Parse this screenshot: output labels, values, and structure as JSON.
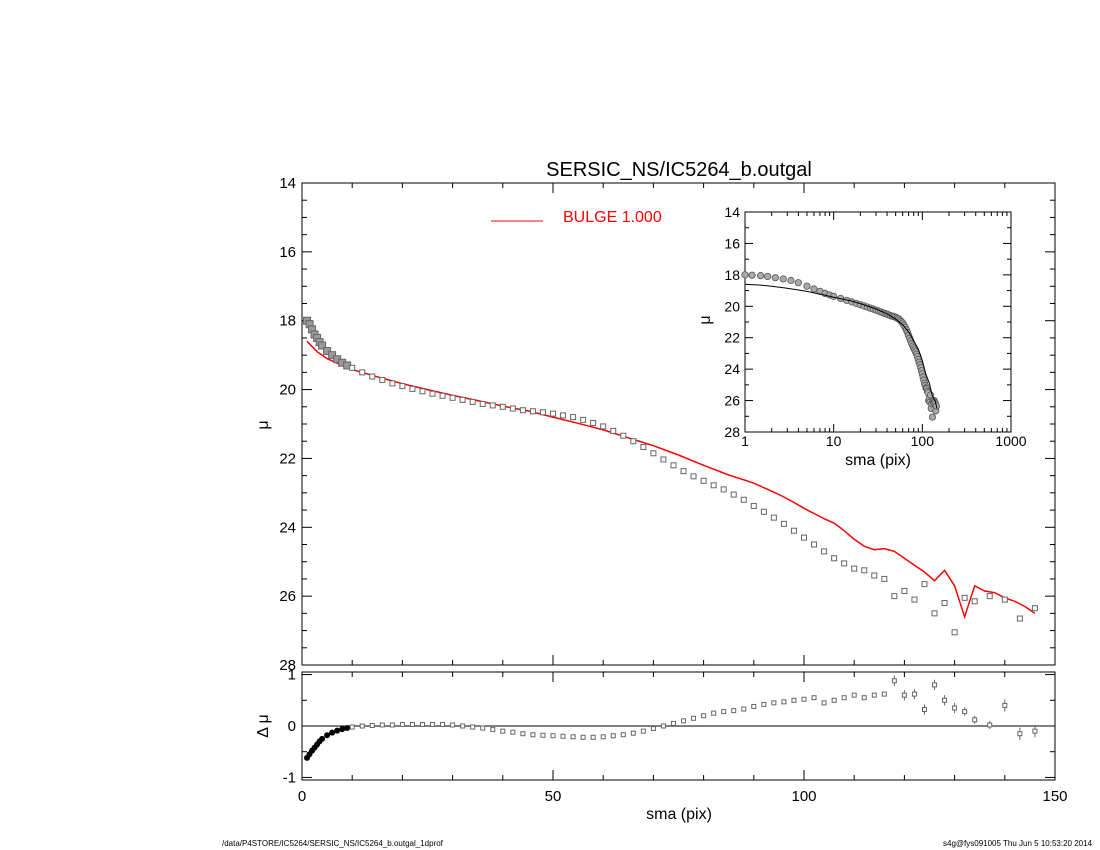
{
  "title": "SERSIC_NS/IC5264_b.outgal",
  "footer": {
    "left": "/data/P4STORE/IC5264/SERSIC_NS/IC5264_b.outgal_1dprof",
    "right": "s4g@fys091005  Thu Jun  5 10:53:20 2014"
  },
  "colors": {
    "model": "#ff0000",
    "points": "#666666",
    "axes": "#000000"
  },
  "chart_data": [
    {
      "name": "main-profile",
      "type": "scatter",
      "xlim": [
        0,
        150
      ],
      "ylim": [
        28,
        14
      ],
      "ylabel": "μ",
      "xticks": [
        0,
        50,
        100,
        150
      ],
      "xtick_labels": [
        "0",
        "50",
        "100",
        "150"
      ],
      "yticks": [
        14,
        16,
        18,
        20,
        22,
        24,
        26,
        28
      ],
      "ytick_labels": [
        "14",
        "16",
        "18",
        "20",
        "22",
        "24",
        "26",
        "28"
      ],
      "legend": {
        "label": "BULGE  1.000",
        "position": "top-center",
        "color": "#ff0000"
      },
      "series": [
        {
          "name": "data",
          "marker": "square",
          "x": [
            1.0,
            1.5,
            2.0,
            2.5,
            3.0,
            3.5,
            4.0,
            5.0,
            6.0,
            7.0,
            8.0,
            9.0,
            10.0,
            12.0,
            14.0,
            16.0,
            18.0,
            20.0,
            22.0,
            24.0,
            26.0,
            28.0,
            30.0,
            32.0,
            34.0,
            36.0,
            38.0,
            40.0,
            42.0,
            44.0,
            46.0,
            48.0,
            50.0,
            52.0,
            54.0,
            56.0,
            58.0,
            60.0,
            62.0,
            64.0,
            66.0,
            68.0,
            70.0,
            72.0,
            74.0,
            76.0,
            78.0,
            80.0,
            82.0,
            84.0,
            86.0,
            88.0,
            90.0,
            92.0,
            94.0,
            96.0,
            98.0,
            100.0,
            102.0,
            104.0,
            106.0,
            108.0,
            110.0,
            112.0,
            114.0,
            116.0,
            118.0,
            120.0,
            122.0,
            124.0,
            126.0,
            128.0,
            130.0,
            132.0,
            134.0,
            137.0,
            140.0,
            143.0,
            146.0
          ],
          "y": [
            18.0,
            18.1,
            18.25,
            18.4,
            18.5,
            18.62,
            18.72,
            18.88,
            19.0,
            19.12,
            19.22,
            19.3,
            19.37,
            19.5,
            19.62,
            19.72,
            19.82,
            19.9,
            19.98,
            20.05,
            20.12,
            20.18,
            20.24,
            20.3,
            20.36,
            20.42,
            20.46,
            20.5,
            20.55,
            20.6,
            20.63,
            20.66,
            20.7,
            20.75,
            20.8,
            20.88,
            20.97,
            21.07,
            21.2,
            21.34,
            21.5,
            21.67,
            21.85,
            22.03,
            22.2,
            22.37,
            22.52,
            22.65,
            22.78,
            22.9,
            23.05,
            23.2,
            23.38,
            23.55,
            23.72,
            23.9,
            24.1,
            24.3,
            24.5,
            24.7,
            24.9,
            25.05,
            25.2,
            25.25,
            25.4,
            25.5,
            26.0,
            25.85,
            26.1,
            25.65,
            26.5,
            26.2,
            27.05,
            26.05,
            26.15,
            26.0,
            26.1,
            26.65,
            26.35
          ]
        },
        {
          "name": "BULGE  1.000",
          "style": "line",
          "x": [
            1,
            3,
            5,
            8,
            10,
            15,
            20,
            25,
            30,
            35,
            40,
            45,
            50,
            55,
            60,
            65,
            70,
            75,
            80,
            85,
            88,
            90,
            92,
            94,
            96,
            98,
            100,
            102,
            104,
            106,
            108,
            110,
            112,
            114,
            116,
            118,
            120,
            122,
            124,
            126,
            128,
            130,
            132,
            134,
            136,
            138,
            140,
            142,
            144,
            146
          ],
          "y": [
            18.6,
            18.9,
            19.1,
            19.3,
            19.42,
            19.63,
            19.83,
            20.0,
            20.17,
            20.32,
            20.48,
            20.62,
            20.8,
            20.98,
            21.17,
            21.4,
            21.63,
            21.9,
            22.2,
            22.48,
            22.62,
            22.72,
            22.85,
            22.98,
            23.12,
            23.28,
            23.45,
            23.6,
            23.75,
            23.88,
            24.1,
            24.35,
            24.55,
            24.65,
            24.62,
            24.7,
            24.9,
            25.1,
            25.3,
            25.55,
            25.25,
            25.7,
            26.6,
            25.7,
            25.85,
            25.9,
            26.05,
            26.15,
            26.3,
            26.5
          ]
        }
      ]
    },
    {
      "name": "residual",
      "type": "scatter",
      "xlim": [
        0,
        150
      ],
      "ylim": [
        -1.05,
        1.05
      ],
      "xlabel": "sma (pix)",
      "ylabel": "Δ μ",
      "xticks": [
        0,
        50,
        100,
        150
      ],
      "xtick_labels": [
        "0",
        "50",
        "100",
        "150"
      ],
      "yticks": [
        -1,
        0,
        1
      ],
      "ytick_labels": [
        "-1",
        "0",
        "1"
      ],
      "series": [
        {
          "name": "residual",
          "marker": "square",
          "x": [
            1.0,
            1.5,
            2.0,
            2.5,
            3.0,
            3.5,
            4.0,
            5.0,
            6.0,
            7.0,
            8.0,
            9.0,
            10.0,
            12.0,
            14.0,
            16.0,
            18.0,
            20.0,
            22.0,
            24.0,
            26.0,
            28.0,
            30.0,
            32.0,
            34.0,
            36.0,
            38.0,
            40.0,
            42.0,
            44.0,
            46.0,
            48.0,
            50.0,
            52.0,
            54.0,
            56.0,
            58.0,
            60.0,
            62.0,
            64.0,
            66.0,
            68.0,
            70.0,
            72.0,
            74.0,
            76.0,
            78.0,
            80.0,
            82.0,
            84.0,
            86.0,
            88.0,
            90.0,
            92.0,
            94.0,
            96.0,
            98.0,
            100.0,
            102.0,
            104.0,
            106.0,
            108.0,
            110.0,
            112.0,
            114.0,
            116.0,
            118.0,
            120.0,
            122.0,
            124.0,
            126.0,
            128.0,
            130.0,
            132.0,
            134.0,
            137.0,
            140.0,
            143.0,
            146.0
          ],
          "y": [
            -0.62,
            -0.55,
            -0.48,
            -0.42,
            -0.36,
            -0.3,
            -0.25,
            -0.18,
            -0.13,
            -0.09,
            -0.06,
            -0.04,
            -0.02,
            0.0,
            0.01,
            0.02,
            0.02,
            0.03,
            0.03,
            0.03,
            0.03,
            0.03,
            0.02,
            0.0,
            -0.02,
            -0.04,
            -0.07,
            -0.1,
            -0.12,
            -0.15,
            -0.17,
            -0.18,
            -0.19,
            -0.2,
            -0.21,
            -0.22,
            -0.22,
            -0.21,
            -0.19,
            -0.17,
            -0.14,
            -0.1,
            -0.05,
            0.0,
            0.05,
            0.1,
            0.15,
            0.2,
            0.25,
            0.28,
            0.3,
            0.33,
            0.38,
            0.42,
            0.45,
            0.47,
            0.5,
            0.52,
            0.55,
            0.45,
            0.5,
            0.55,
            0.6,
            0.55,
            0.6,
            0.62,
            0.88,
            0.6,
            0.62,
            0.32,
            0.8,
            0.5,
            0.35,
            0.28,
            0.12,
            0.02,
            0.4,
            -0.15,
            -0.1
          ],
          "errors": [
            0,
            0,
            0,
            0,
            0,
            0,
            0,
            0,
            0,
            0,
            0,
            0,
            0,
            0,
            0,
            0,
            0,
            0,
            0,
            0,
            0,
            0,
            0,
            0,
            0,
            0,
            0,
            0,
            0,
            0,
            0,
            0,
            0,
            0,
            0,
            0,
            0,
            0,
            0,
            0,
            0,
            0,
            0,
            0,
            0,
            0,
            0,
            0,
            0,
            0,
            0,
            0,
            0,
            0,
            0,
            0,
            0,
            0,
            0,
            0,
            0,
            0,
            0,
            0,
            0,
            0,
            0.1,
            0.1,
            0.1,
            0.1,
            0.1,
            0.1,
            0.1,
            0.08,
            0.08,
            0.08,
            0.12,
            0.12,
            0.12
          ]
        }
      ]
    },
    {
      "name": "inset-log",
      "type": "scatter",
      "xscale": "log",
      "xlim": [
        1,
        1000
      ],
      "ylim": [
        28,
        14
      ],
      "xlabel": "sma (pix)",
      "ylabel": "μ",
      "xticks": [
        1,
        10,
        100,
        1000
      ],
      "xtick_labels": [
        "1",
        "10",
        "100",
        "1000"
      ],
      "yticks": [
        14,
        16,
        18,
        20,
        22,
        24,
        26,
        28
      ],
      "ytick_labels": [
        "14",
        "16",
        "18",
        "20",
        "22",
        "24",
        "26",
        "28"
      ],
      "series": [
        {
          "name": "data",
          "marker": "circle",
          "x": [
            1.0,
            1.2,
            1.5,
            1.8,
            2.2,
            2.7,
            3.3,
            4,
            5,
            6,
            7,
            8,
            9,
            10,
            12,
            14,
            16,
            18,
            20,
            22,
            24,
            26,
            28,
            30,
            32,
            34,
            36,
            38,
            40,
            42,
            44,
            46,
            48,
            50,
            52,
            54,
            56,
            58,
            60,
            62,
            64,
            66,
            68,
            70,
            72,
            74,
            76,
            78,
            80,
            82,
            84,
            86,
            88,
            90,
            92,
            94,
            96,
            98,
            100,
            102,
            104,
            106,
            108,
            110,
            112,
            114,
            116,
            118,
            120,
            122,
            124,
            126,
            128,
            130,
            132,
            134,
            136,
            138,
            140,
            142,
            144
          ],
          "y": [
            18.0,
            18.02,
            18.05,
            18.1,
            18.18,
            18.26,
            18.36,
            18.5,
            18.72,
            18.9,
            19.05,
            19.18,
            19.28,
            19.37,
            19.5,
            19.62,
            19.72,
            19.82,
            19.9,
            19.98,
            20.05,
            20.12,
            20.18,
            20.24,
            20.3,
            20.36,
            20.42,
            20.46,
            20.5,
            20.55,
            20.6,
            20.63,
            20.66,
            20.7,
            20.75,
            20.8,
            20.88,
            20.97,
            21.07,
            21.2,
            21.34,
            21.5,
            21.67,
            21.85,
            22.03,
            22.2,
            22.37,
            22.52,
            22.65,
            22.78,
            22.9,
            23.05,
            23.2,
            23.38,
            23.55,
            23.72,
            23.9,
            24.1,
            24.3,
            24.5,
            24.7,
            24.9,
            25.05,
            25.2,
            25.25,
            25.4,
            25.5,
            26.0,
            25.85,
            26.1,
            25.65,
            26.5,
            26.2,
            27.05,
            26.05,
            26.15,
            26.0,
            26.1,
            26.2,
            26.65,
            26.35
          ]
        },
        {
          "name": "model",
          "style": "line",
          "x": [
            1,
            1.5,
            2,
            3,
            5,
            8,
            10,
            15,
            20,
            30,
            40,
            50,
            60,
            70,
            80,
            90,
            100,
            110,
            120,
            130,
            140,
            146
          ],
          "y": [
            18.6,
            18.65,
            18.72,
            18.85,
            19.05,
            19.3,
            19.42,
            19.63,
            19.83,
            20.17,
            20.48,
            20.8,
            21.17,
            21.63,
            22.2,
            22.72,
            23.45,
            24.35,
            24.9,
            25.7,
            26.05,
            26.5
          ]
        }
      ]
    }
  ]
}
